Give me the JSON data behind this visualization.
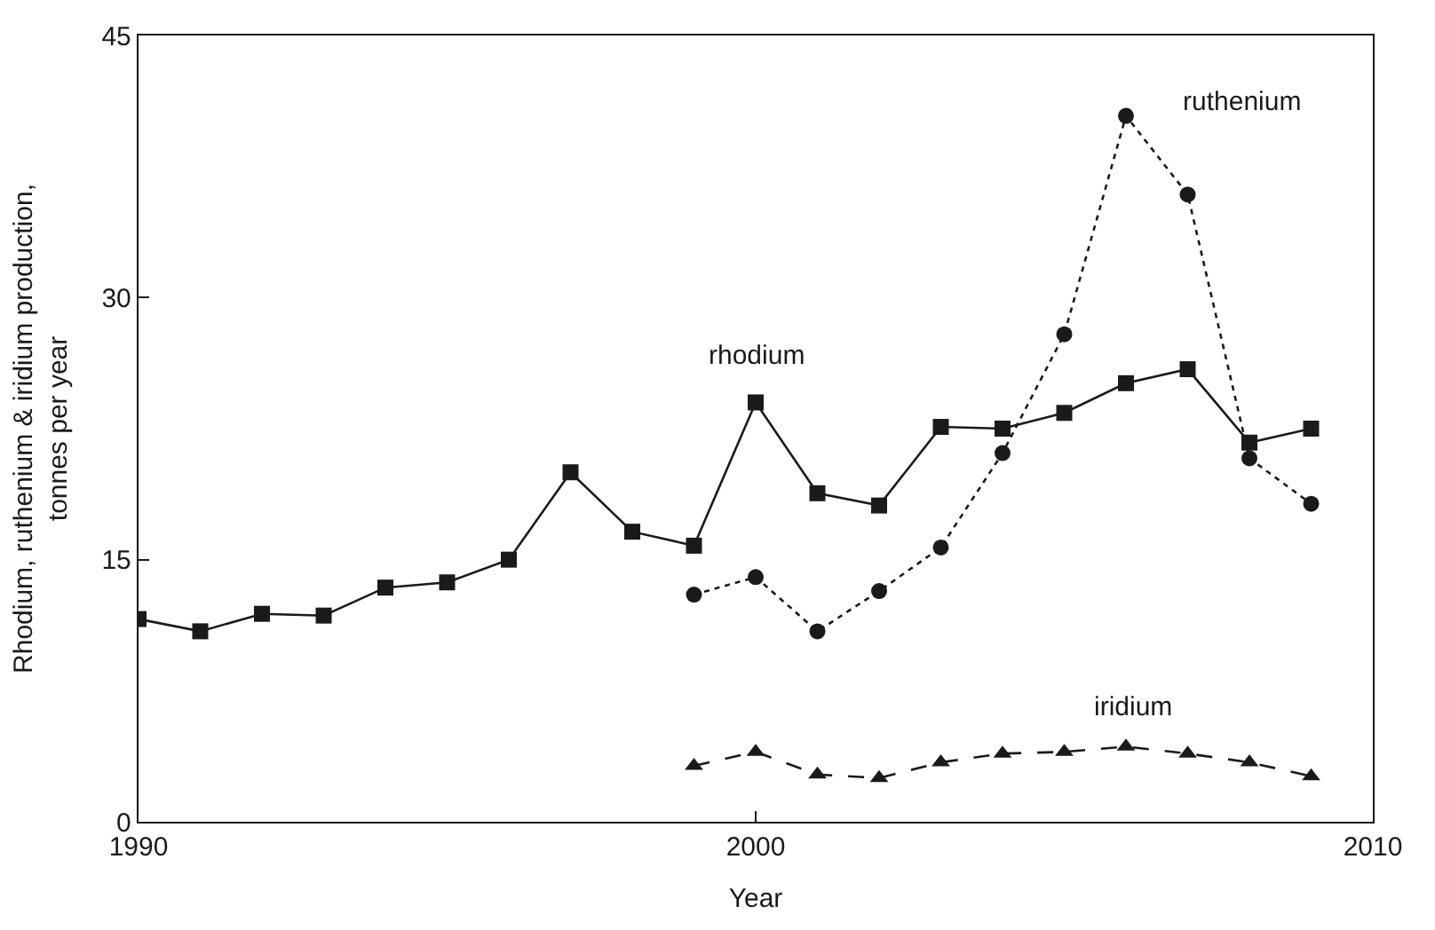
{
  "chart_data": {
    "type": "line",
    "xlabel": "Year",
    "ylabel": "Rhodium, ruthenium & iridium production, tonnes per year",
    "xlim": [
      1990,
      2010
    ],
    "xticks": [
      1990,
      2000,
      2010
    ],
    "ylim": [
      0,
      45
    ],
    "yticks": [
      0,
      15,
      30,
      45
    ],
    "grid": false,
    "legend": false,
    "series": [
      {
        "name": "rhodium",
        "color": "#1a1a1a",
        "marker": "square",
        "line_style": "solid",
        "x": [
          1990,
          1991,
          1992,
          1993,
          1994,
          1995,
          1996,
          1997,
          1998,
          1999,
          2000,
          2001,
          2002,
          2003,
          2004,
          2005,
          2006,
          2007,
          2008,
          2009
        ],
        "values": [
          11.6,
          10.9,
          11.9,
          11.8,
          13.4,
          13.7,
          15.0,
          20.0,
          16.6,
          15.8,
          24.0,
          18.8,
          18.1,
          22.6,
          22.5,
          23.4,
          25.1,
          25.9,
          21.7,
          22.5
        ]
      },
      {
        "name": "ruthenium",
        "color": "#1a1a1a",
        "marker": "circle",
        "line_style": "dotted",
        "x": [
          1999,
          2000,
          2001,
          2002,
          2003,
          2004,
          2005,
          2006,
          2007,
          2008,
          2009
        ],
        "values": [
          13.0,
          14.0,
          10.9,
          13.2,
          15.7,
          21.1,
          27.9,
          40.4,
          35.9,
          20.8,
          18.2
        ]
      },
      {
        "name": "iridium",
        "color": "#1a1a1a",
        "marker": "triangle",
        "line_style": "dashed",
        "x": [
          1999,
          2000,
          2001,
          2002,
          2003,
          2004,
          2005,
          2006,
          2007,
          2008,
          2009
        ],
        "values": [
          3.2,
          4.0,
          2.7,
          2.5,
          3.4,
          3.9,
          4.0,
          4.3,
          3.9,
          3.4,
          2.6
        ]
      }
    ]
  }
}
